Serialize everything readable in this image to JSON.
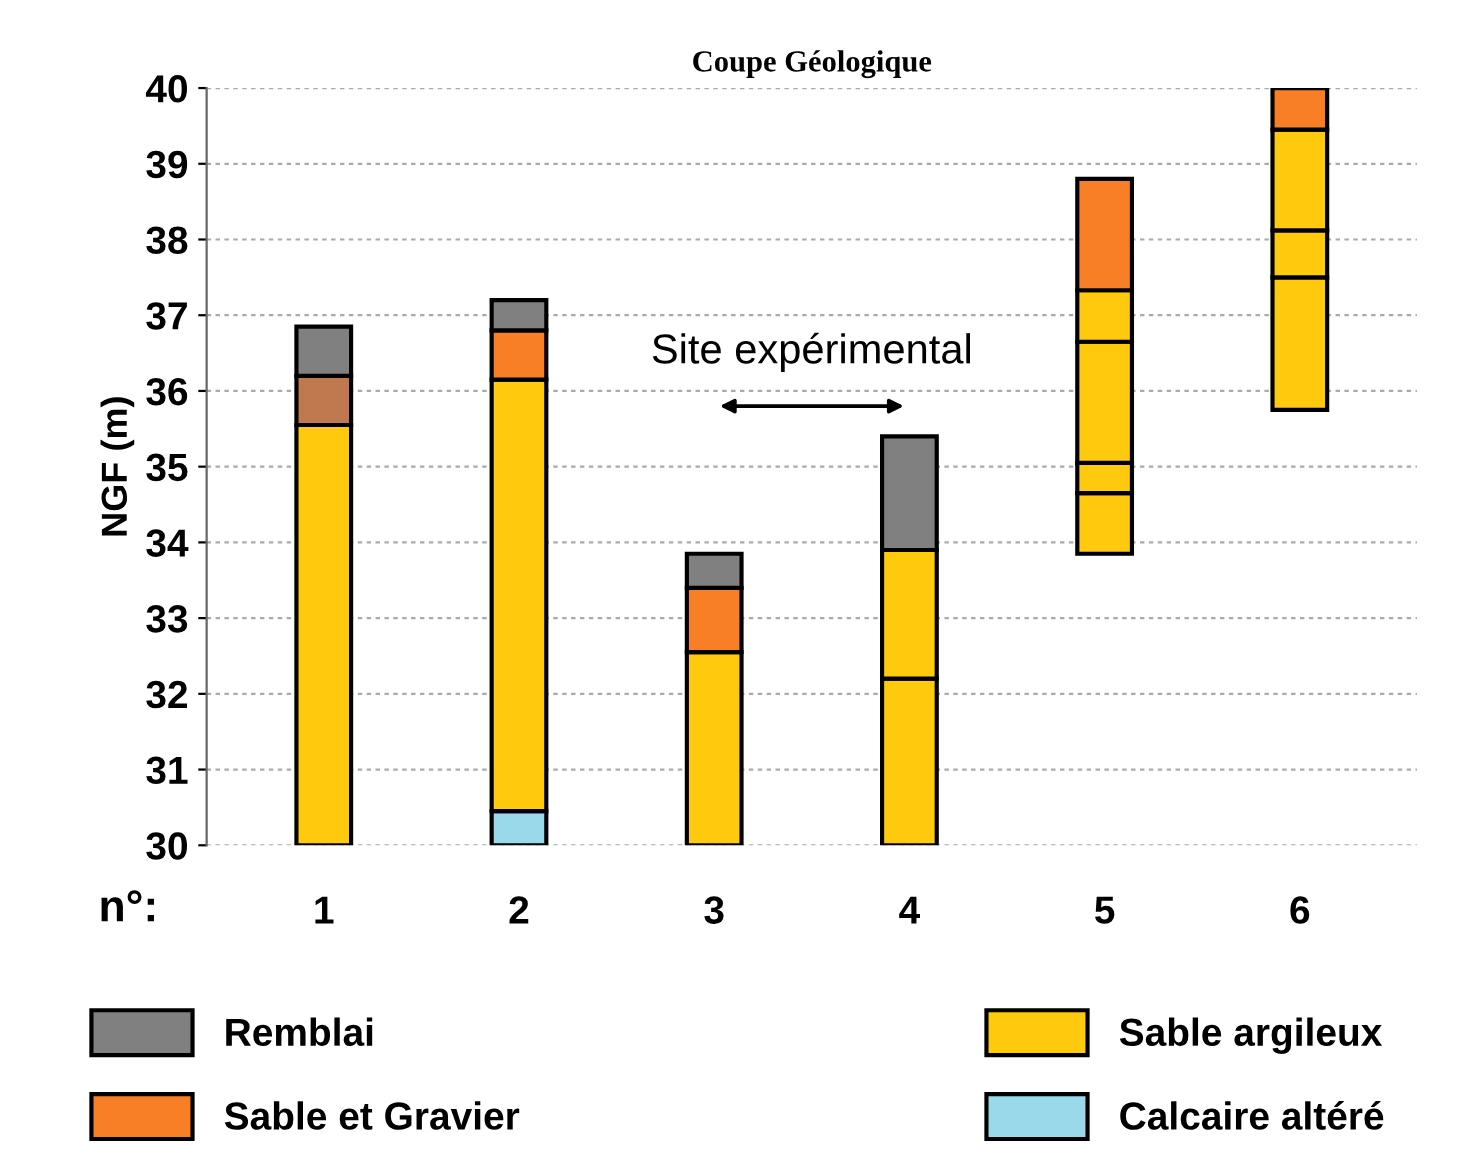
{
  "chart_data": {
    "type": "bar",
    "title": "Coupe Géologique",
    "ylabel": "NGF (m)",
    "xlabel": "n°:",
    "categories": [
      "1",
      "2",
      "3",
      "4",
      "5",
      "6"
    ],
    "series": [
      {
        "name": "Calcaire altéré",
        "color": "#99d9ea",
        "base": [
          null,
          30,
          null,
          null,
          null,
          null
        ],
        "values": [
          null,
          0.45,
          null,
          null,
          null,
          null
        ]
      },
      {
        "name": "Sable argileux",
        "color": "#ffc90e",
        "base": [
          30,
          30.45,
          30,
          30,
          33.85,
          35.75
        ],
        "values": [
          5.55,
          5.7,
          2.55,
          2.2,
          0.8,
          1.75
        ]
      },
      {
        "color": "#ffc90e",
        "base": [
          null,
          null,
          null,
          32.2,
          34.65,
          37.5
        ],
        "values": [
          null,
          null,
          null,
          1.7,
          0.4,
          0.62
        ]
      },
      {
        "color": "#ffc90e",
        "base": [
          null,
          null,
          null,
          null,
          35.05,
          38.12
        ],
        "values": [
          null,
          null,
          null,
          null,
          1.6,
          1.33
        ]
      },
      {
        "color": "#ffc90e",
        "base": [
          null,
          null,
          null,
          null,
          36.65,
          null
        ],
        "values": [
          null,
          null,
          null,
          null,
          0.68,
          null
        ]
      },
      {
        "color": "#c0794f",
        "base": [
          35.55,
          null,
          null,
          null,
          null,
          null
        ],
        "values": [
          0.65,
          null,
          null,
          null,
          null,
          null
        ]
      },
      {
        "name": "Sable et Gravier",
        "color": "#f97f27",
        "base": [
          null,
          36.15,
          32.55,
          null,
          37.33,
          39.45
        ],
        "values": [
          null,
          0.65,
          0.85,
          null,
          1.47,
          0.55
        ]
      },
      {
        "name": "Remblai",
        "color": "#808080",
        "base": [
          36.2,
          36.8,
          33.4,
          33.9,
          null,
          null
        ],
        "values": [
          0.65,
          0.4,
          0.45,
          1.5,
          null,
          null
        ]
      }
    ],
    "annotations": [
      "Site expérimental"
    ],
    "ylim": [
      30,
      40
    ],
    "yticks": [
      30,
      31,
      32,
      33,
      34,
      35,
      36,
      37,
      38,
      39,
      40
    ],
    "grid": "y",
    "legend": "bottom"
  }
}
